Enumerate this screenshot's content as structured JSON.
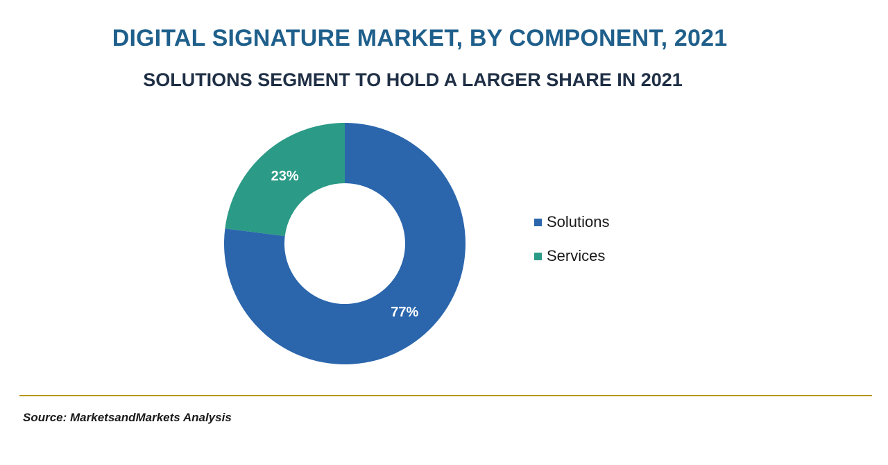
{
  "title": "DIGITAL SIGNATURE MARKET, BY COMPONENT, 2021",
  "subtitle": "SOLUTIONS SEGMENT TO HOLD A LARGER SHARE IN 2021",
  "source": "Source: MarketsandMarkets Analysis",
  "colors": {
    "title": "#1f5f8b",
    "rule": "#b8961e"
  },
  "chart_data": {
    "type": "pie",
    "style": "donut",
    "title": "DIGITAL SIGNATURE MARKET, BY COMPONENT, 2021",
    "subtitle": "SOLUTIONS SEGMENT TO HOLD A LARGER SHARE IN 2021",
    "categories": [
      "Solutions",
      "Services"
    ],
    "values": [
      77,
      23
    ],
    "data_labels": [
      "77%",
      "23%"
    ],
    "colors": [
      "#2b66ad",
      "#2b9a86"
    ],
    "legend_position": "right"
  }
}
